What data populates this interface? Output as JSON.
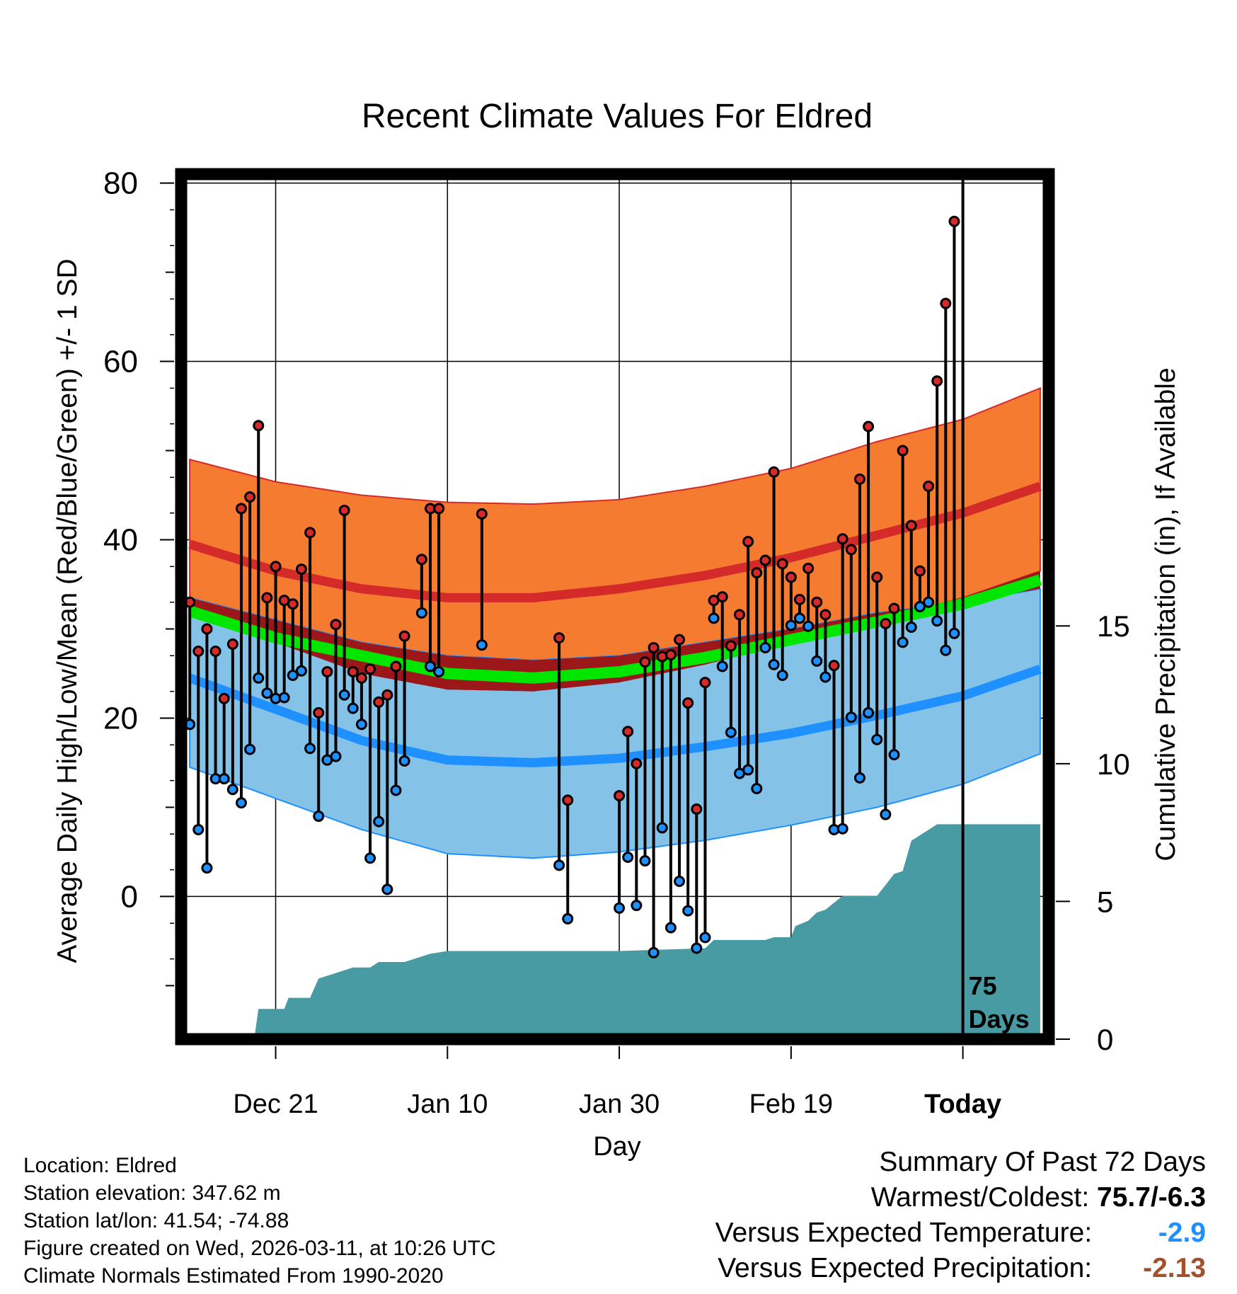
{
  "chart_data": {
    "type": "line",
    "title": "Recent Climate Values For Eldred",
    "xlabel": "Day",
    "ylabel": "Average Daily High/Low/Mean (Red/Blue/Green) +/- 1 SD",
    "ylabel_right": "Cumulative Precipitation (in), If Available",
    "xlim": [
      -11,
      90
    ],
    "ylim": [
      -16,
      81
    ],
    "y_ticks": [
      0,
      20,
      40,
      60,
      80
    ],
    "precip_ticks": [
      0,
      5,
      10,
      15
    ],
    "precip_max_scale": 31.4,
    "x_tick_days": [
      0,
      20,
      40,
      60,
      80
    ],
    "x_tick_labels": [
      "Dec 21",
      "Jan 10",
      "Jan 30",
      "Feb 19",
      "Today"
    ],
    "today_label": "75\nDays",
    "normal_high": [
      [
        -10,
        39.5
      ],
      [
        0,
        36.5
      ],
      [
        10,
        34.5
      ],
      [
        20,
        33.5
      ],
      [
        30,
        33.5
      ],
      [
        40,
        34.5
      ],
      [
        50,
        36
      ],
      [
        60,
        38
      ],
      [
        70,
        40.5
      ],
      [
        80,
        43
      ],
      [
        89,
        46
      ]
    ],
    "normal_high_upper": [
      [
        -10,
        49
      ],
      [
        0,
        46.5
      ],
      [
        10,
        45
      ],
      [
        20,
        44.2
      ],
      [
        30,
        44
      ],
      [
        40,
        44.5
      ],
      [
        50,
        46
      ],
      [
        60,
        48
      ],
      [
        70,
        51
      ],
      [
        80,
        53.5
      ],
      [
        89,
        57
      ]
    ],
    "normal_high_lower": [
      [
        -10,
        32.5
      ],
      [
        0,
        28.5
      ],
      [
        10,
        25
      ],
      [
        20,
        23.2
      ],
      [
        30,
        23
      ],
      [
        40,
        24
      ],
      [
        50,
        26
      ],
      [
        60,
        28.5
      ],
      [
        70,
        31
      ],
      [
        80,
        33.5
      ],
      [
        89,
        36.5
      ]
    ],
    "normal_low": [
      [
        -10,
        24.5
      ],
      [
        0,
        21
      ],
      [
        10,
        17.5
      ],
      [
        20,
        15.3
      ],
      [
        30,
        15
      ],
      [
        40,
        15.5
      ],
      [
        50,
        16.8
      ],
      [
        60,
        18.3
      ],
      [
        70,
        20.3
      ],
      [
        80,
        22.5
      ],
      [
        89,
        25.5
      ]
    ],
    "normal_low_upper": [
      [
        -10,
        33.5
      ],
      [
        0,
        31
      ],
      [
        10,
        28.5
      ],
      [
        20,
        27
      ],
      [
        30,
        26.5
      ],
      [
        40,
        27
      ],
      [
        50,
        28.5
      ],
      [
        60,
        30
      ],
      [
        70,
        31.8
      ],
      [
        80,
        33
      ],
      [
        89,
        34.5
      ]
    ],
    "normal_low_lower": [
      [
        -10,
        14.5
      ],
      [
        0,
        11
      ],
      [
        10,
        7.5
      ],
      [
        20,
        4.8
      ],
      [
        30,
        4.3
      ],
      [
        40,
        5
      ],
      [
        50,
        6.3
      ],
      [
        60,
        8
      ],
      [
        70,
        10
      ],
      [
        80,
        12.6
      ],
      [
        89,
        16
      ]
    ],
    "normal_mean": [
      [
        -10,
        32
      ],
      [
        0,
        29
      ],
      [
        10,
        27
      ],
      [
        20,
        25
      ],
      [
        30,
        24.5
      ],
      [
        40,
        25.2
      ],
      [
        50,
        26.8
      ],
      [
        60,
        28.8
      ],
      [
        70,
        30.8
      ],
      [
        80,
        32.8
      ],
      [
        89,
        35.5
      ]
    ],
    "daily_high": [
      [
        -10,
        33
      ],
      [
        -9,
        27.5
      ],
      [
        -8,
        30
      ],
      [
        -7,
        27.5
      ],
      [
        -6,
        22.2
      ],
      [
        -5,
        28.3
      ],
      [
        -4,
        43.5
      ],
      [
        -3,
        44.8
      ],
      [
        -2,
        52.8
      ],
      [
        -1,
        33.5
      ],
      [
        0,
        37
      ],
      [
        1,
        33.2
      ],
      [
        2,
        32.8
      ],
      [
        3,
        36.7
      ],
      [
        4,
        40.8
      ],
      [
        5,
        20.6
      ],
      [
        6,
        25.2
      ],
      [
        7,
        30.5
      ],
      [
        8,
        43.3
      ],
      [
        9,
        25.2
      ],
      [
        10,
        24.5
      ],
      [
        11,
        25.5
      ],
      [
        12,
        21.8
      ],
      [
        13,
        22.6
      ],
      [
        14,
        25.8
      ],
      [
        15,
        29.2
      ],
      [
        17,
        37.8
      ],
      [
        18,
        43.5
      ],
      [
        19,
        43.5
      ],
      [
        24,
        42.9
      ],
      [
        33,
        29
      ],
      [
        34,
        10.8
      ],
      [
        40,
        11.3
      ],
      [
        41,
        18.5
      ],
      [
        42,
        14.9
      ],
      [
        43,
        26.3
      ],
      [
        44,
        27.9
      ],
      [
        45,
        26.9
      ],
      [
        46,
        27.1
      ],
      [
        47,
        28.8
      ],
      [
        48,
        21.7
      ],
      [
        49,
        9.8
      ],
      [
        50,
        24
      ],
      [
        51,
        33.2
      ],
      [
        52,
        33.6
      ],
      [
        53,
        28.1
      ],
      [
        54,
        31.6
      ],
      [
        55,
        39.8
      ],
      [
        56,
        36.3
      ],
      [
        57,
        37.7
      ],
      [
        58,
        47.6
      ],
      [
        59,
        37.3
      ],
      [
        60,
        35.8
      ],
      [
        61,
        33.3
      ],
      [
        62,
        36.8
      ],
      [
        63,
        33
      ],
      [
        64,
        31.6
      ],
      [
        65,
        25.9
      ],
      [
        66,
        40.1
      ],
      [
        67,
        38.9
      ],
      [
        68,
        46.8
      ],
      [
        69,
        52.7
      ],
      [
        70,
        35.8
      ],
      [
        71,
        30.6
      ],
      [
        72,
        32.3
      ],
      [
        73,
        50
      ],
      [
        74,
        41.6
      ],
      [
        75,
        36.5
      ],
      [
        76,
        46
      ],
      [
        77,
        57.8
      ],
      [
        78,
        66.5
      ],
      [
        79,
        75.7
      ]
    ],
    "daily_low": [
      [
        -10,
        19.3
      ],
      [
        -9,
        7.5
      ],
      [
        -8,
        3.2
      ],
      [
        -7,
        13.2
      ],
      [
        -6,
        13.2
      ],
      [
        -5,
        12
      ],
      [
        -4,
        10.5
      ],
      [
        -3,
        16.5
      ],
      [
        -2,
        24.5
      ],
      [
        -1,
        22.8
      ],
      [
        0,
        22.2
      ],
      [
        1,
        22.3
      ],
      [
        2,
        24.8
      ],
      [
        3,
        25.3
      ],
      [
        4,
        16.6
      ],
      [
        5,
        9
      ],
      [
        6,
        15.3
      ],
      [
        7,
        15.7
      ],
      [
        8,
        22.6
      ],
      [
        9,
        21.1
      ],
      [
        10,
        19.3
      ],
      [
        11,
        4.3
      ],
      [
        12,
        8.4
      ],
      [
        13,
        0.8
      ],
      [
        14,
        11.9
      ],
      [
        15,
        15.2
      ],
      [
        17,
        31.8
      ],
      [
        18,
        25.8
      ],
      [
        19,
        25.2
      ],
      [
        24,
        28.2
      ],
      [
        33,
        3.5
      ],
      [
        34,
        -2.5
      ],
      [
        40,
        -1.3
      ],
      [
        41,
        4.4
      ],
      [
        42,
        -1
      ],
      [
        43,
        4
      ],
      [
        44,
        -6.3
      ],
      [
        45,
        7.7
      ],
      [
        46,
        -3.5
      ],
      [
        47,
        1.7
      ],
      [
        48,
        -1.6
      ],
      [
        49,
        -5.8
      ],
      [
        50,
        -4.6
      ],
      [
        51,
        31.2
      ],
      [
        52,
        25.8
      ],
      [
        53,
        18.4
      ],
      [
        54,
        13.8
      ],
      [
        55,
        14.2
      ],
      [
        56,
        12.1
      ],
      [
        57,
        27.9
      ],
      [
        58,
        26
      ],
      [
        59,
        24.8
      ],
      [
        60,
        30.4
      ],
      [
        61,
        31.2
      ],
      [
        62,
        30.3
      ],
      [
        63,
        26.4
      ],
      [
        64,
        24.6
      ],
      [
        65,
        7.5
      ],
      [
        66,
        7.6
      ],
      [
        67,
        20.1
      ],
      [
        68,
        13.3
      ],
      [
        69,
        20.6
      ],
      [
        70,
        17.6
      ],
      [
        71,
        9.2
      ],
      [
        72,
        15.9
      ],
      [
        73,
        28.5
      ],
      [
        74,
        30.2
      ],
      [
        75,
        32.5
      ],
      [
        76,
        33
      ],
      [
        77,
        30.9
      ],
      [
        78,
        27.6
      ],
      [
        79,
        29.5
      ]
    ],
    "cumulative_precip": [
      [
        -10,
        0
      ],
      [
        -2.5,
        0
      ],
      [
        -2,
        1.1
      ],
      [
        1,
        1.1
      ],
      [
        1.5,
        1.5
      ],
      [
        4,
        1.5
      ],
      [
        5,
        2.2
      ],
      [
        7,
        2.4
      ],
      [
        9,
        2.6
      ],
      [
        11,
        2.6
      ],
      [
        12,
        2.8
      ],
      [
        15,
        2.8
      ],
      [
        17,
        3
      ],
      [
        18,
        3.1
      ],
      [
        20,
        3.2
      ],
      [
        30,
        3.2
      ],
      [
        40,
        3.2
      ],
      [
        50,
        3.3
      ],
      [
        51,
        3.6
      ],
      [
        57,
        3.6
      ],
      [
        58,
        3.7
      ],
      [
        60,
        3.7
      ],
      [
        60.5,
        4.1
      ],
      [
        62,
        4.3
      ],
      [
        63,
        4.6
      ],
      [
        64,
        4.7
      ],
      [
        66,
        5.2
      ],
      [
        70,
        5.2
      ],
      [
        71,
        5.6
      ],
      [
        72,
        6
      ],
      [
        73,
        6.1
      ],
      [
        74,
        7.2
      ],
      [
        75,
        7.4
      ],
      [
        76,
        7.6
      ],
      [
        77,
        7.8
      ],
      [
        89,
        7.8
      ]
    ]
  },
  "footer": {
    "location": "Location: Eldred",
    "elevation": "Station elevation: 347.62 m",
    "latlon": "Station lat/lon: 41.54; -74.88",
    "created": "Figure created on Wed, 2026-03-11, at 10:26 UTC",
    "normals": "Climate Normals Estimated From 1990-2020"
  },
  "summary": {
    "heading": "Summary Of Past 72 Days",
    "warm_cold_label": "Warmest/Coldest:",
    "warm_cold_value": "75.7/-6.3",
    "temp_label": "Versus Expected Temperature:",
    "temp_value": "-2.9",
    "precip_label": "Versus Expected Precipitation:",
    "precip_value": "-2.13"
  },
  "colors": {
    "high_band": "#f47b30",
    "high_line": "#d42a2a",
    "low_band": "#85c2e8",
    "low_line": "#1e90ff",
    "overlap": "#9b1719",
    "mean_line": "#00e600",
    "precip_fill": "#489aa3",
    "high_dot": "#d42a2a",
    "low_dot": "#1e90ff",
    "temp_value": "#1e90ff",
    "precip_value": "#a0522d"
  }
}
